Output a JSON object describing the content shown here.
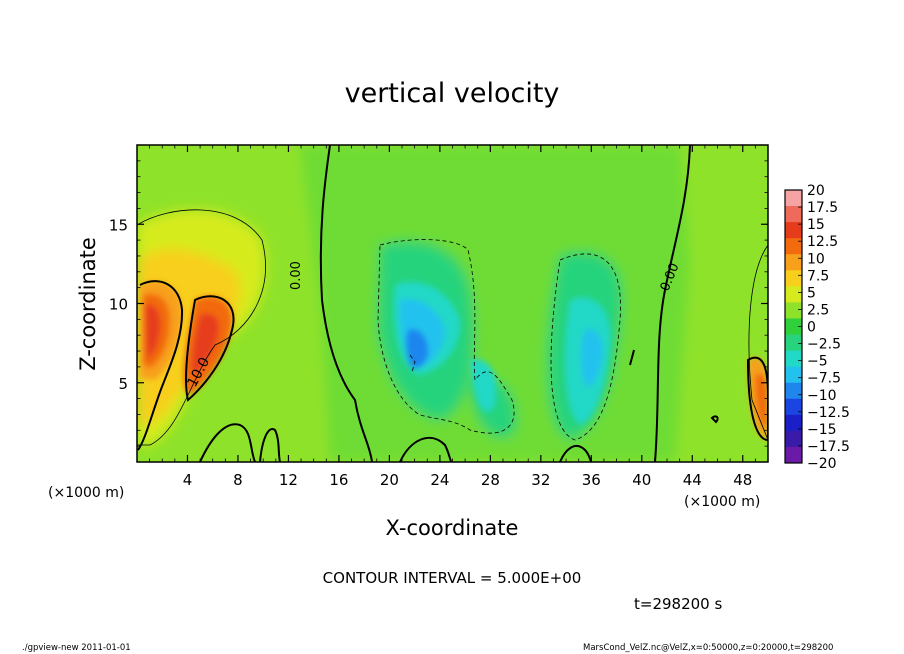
{
  "chart_data": {
    "type": "heatmap",
    "title": "vertical velocity",
    "xlabel": "X-coordinate",
    "ylabel": "Z-coordinate",
    "x_unit": "(×1000 m)",
    "y_unit": "(×1000 m)",
    "xlim": [
      0,
      50
    ],
    "ylim": [
      0,
      20
    ],
    "x_ticks": [
      4,
      8,
      12,
      16,
      20,
      24,
      28,
      32,
      36,
      40,
      44,
      48
    ],
    "y_ticks": [
      5,
      10,
      15
    ],
    "contour_labels": [
      "10.0",
      "0.00",
      "0.00"
    ],
    "colorbar": {
      "levels": [
        "20",
        "17.5",
        "15",
        "12.5",
        "10",
        "7.5",
        "5",
        "2.5",
        "0",
        "−2.5",
        "−5",
        "−7.5",
        "−10",
        "−12.5",
        "−15",
        "−17.5",
        "−20"
      ],
      "colors": [
        "#f5a3a3",
        "#ee6a5a",
        "#e63c1c",
        "#f26b0e",
        "#f7a01c",
        "#f8cf1d",
        "#d6eb1d",
        "#8fe22a",
        "#2fd03a",
        "#27d37d",
        "#22d8c6",
        "#23c2ee",
        "#1f86ee",
        "#1a45e2",
        "#1a1fc8",
        "#3a1aa8",
        "#6b1aa8"
      ]
    },
    "features": [
      {
        "kind": "updraft",
        "x": 2.5,
        "z": 8.5,
        "peak": 15
      },
      {
        "kind": "updraft",
        "x": 5.5,
        "z": 6.5,
        "peak": 12.5
      },
      {
        "kind": "updraft",
        "x": 49.5,
        "z": 4.5,
        "peak": 12.5
      },
      {
        "kind": "downdraft",
        "x": 22.5,
        "z": 7.5,
        "peak": -7.5
      },
      {
        "kind": "downdraft",
        "x": 34.5,
        "z": 6,
        "peak": -5
      }
    ]
  },
  "contour_interval": "CONTOUR INTERVAL = 5.000E+00",
  "time_label": "t=298200 s",
  "footer_left": "./gpview-new  2011-01-01",
  "footer_right": "MarsCond_VelZ.nc@VelZ,x=0:50000,z=0:20000,t=298200"
}
